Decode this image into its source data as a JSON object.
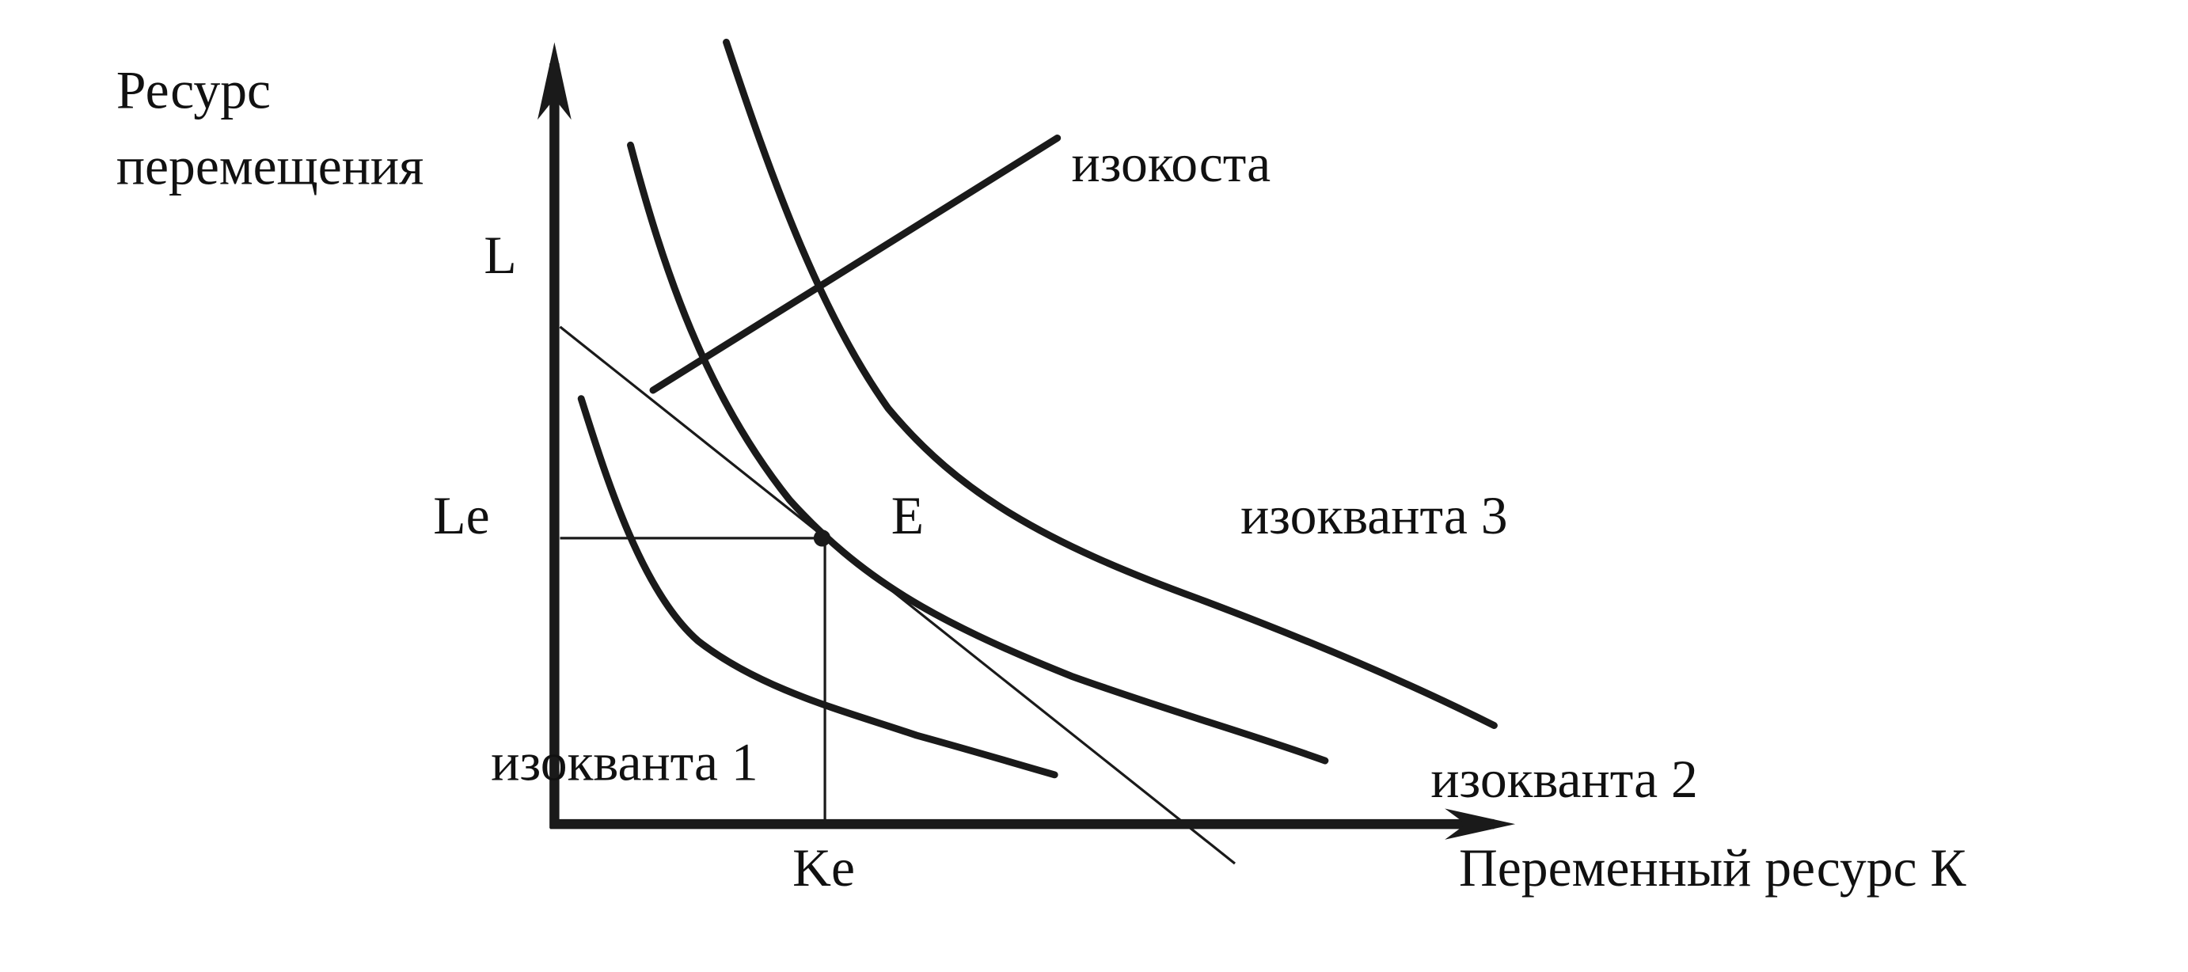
{
  "axis_label_y": [
    "Ресурс",
    "перемещения"
  ],
  "axis_label_x": "Переменный ресурс К",
  "point_labels": {
    "L": "L",
    "Le": "Le",
    "E": "E",
    "Ke": "Ke"
  },
  "isocost_label": "изокоста",
  "isoquant_labels": [
    "изокванта 1",
    "изокванта 2",
    "изокванта 3"
  ]
}
